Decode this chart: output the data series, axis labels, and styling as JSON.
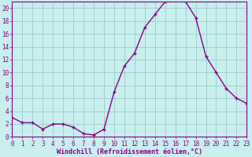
{
  "x": [
    0,
    1,
    2,
    3,
    4,
    5,
    6,
    7,
    8,
    9,
    10,
    11,
    12,
    13,
    14,
    15,
    16,
    17,
    18,
    19,
    20,
    21,
    22,
    23
  ],
  "y": [
    3,
    2.2,
    2.2,
    1.2,
    2,
    2,
    1.5,
    0.5,
    0.3,
    1.2,
    7,
    11,
    13,
    17,
    19,
    21,
    21.5,
    21,
    18.5,
    12.5,
    10,
    7.5,
    6,
    5.2
  ],
  "line_color": "#880088",
  "marker": "+",
  "marker_color": "#880088",
  "bg_color": "#c8eeee",
  "grid_color": "#a0d0d0",
  "xlabel": "Windchill (Refroidissement éolien,°C)",
  "xlabel_color": "#880088",
  "tick_color": "#880088",
  "spine_color": "#880088",
  "xlim": [
    0,
    23
  ],
  "ylim": [
    0,
    21
  ],
  "yticks": [
    0,
    2,
    4,
    6,
    8,
    10,
    12,
    14,
    16,
    18,
    20
  ],
  "xticks": [
    0,
    1,
    2,
    3,
    4,
    5,
    6,
    7,
    8,
    9,
    10,
    11,
    12,
    13,
    14,
    15,
    16,
    17,
    18,
    19,
    20,
    21,
    22,
    23
  ],
  "tick_fontsize": 5.5,
  "label_fontsize": 6.0
}
